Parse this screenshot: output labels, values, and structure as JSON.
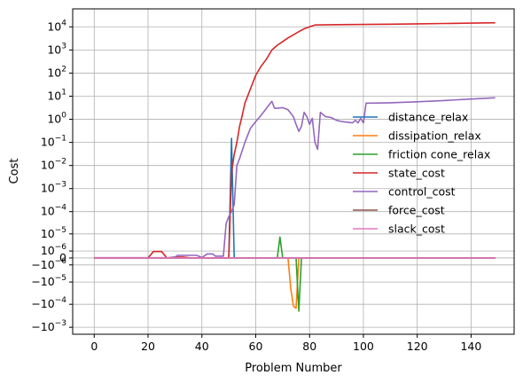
{
  "chart_data": {
    "type": "line",
    "xlabel": "Problem Number",
    "ylabel": "Cost",
    "xlim": [
      -8,
      156
    ],
    "x_ticks": [
      0,
      20,
      40,
      60,
      80,
      100,
      120,
      140
    ],
    "y_scale": "symlog",
    "y_linthresh": 1e-06,
    "ylim": [
      -0.002,
      60000
    ],
    "y_ticks": [
      {
        "label": "10^4",
        "value": 10000
      },
      {
        "label": "10^3",
        "value": 1000
      },
      {
        "label": "10^2",
        "value": 100
      },
      {
        "label": "10^1",
        "value": 10
      },
      {
        "label": "10^0",
        "value": 1
      },
      {
        "label": "10^-1",
        "value": 0.1
      },
      {
        "label": "10^-2",
        "value": 0.01
      },
      {
        "label": "10^-3",
        "value": 0.001
      },
      {
        "label": "10^-4",
        "value": 0.0001
      },
      {
        "label": "10^-5",
        "value": 1e-05
      },
      {
        "label": "10^-6",
        "value": 1e-06
      },
      {
        "label": "0",
        "value": 0
      },
      {
        "label": "-10^-6",
        "value": -1e-06
      },
      {
        "label": "-10^-5",
        "value": -1e-05
      },
      {
        "label": "-10^-4",
        "value": -0.0001
      },
      {
        "label": "-10^-3",
        "value": -0.001
      }
    ],
    "grid": true,
    "legend_position": "center-right",
    "series": [
      {
        "name": "distance_relax",
        "color": "#1f77b4",
        "points": [
          [
            0,
            0
          ],
          [
            50,
            0
          ],
          [
            51,
            0.15
          ],
          [
            52,
            0
          ],
          [
            149,
            0
          ]
        ]
      },
      {
        "name": "dissipation_relax",
        "color": "#ff7f0e",
        "points": [
          [
            0,
            0
          ],
          [
            72,
            0
          ],
          [
            73,
            -2e-05
          ],
          [
            74,
            -0.00012
          ],
          [
            75,
            -0.00015
          ],
          [
            76,
            0
          ],
          [
            149,
            0
          ]
        ]
      },
      {
        "name": "friction cone_relax",
        "color": "#2ca02c",
        "points": [
          [
            0,
            0
          ],
          [
            68,
            0
          ],
          [
            69,
            7e-06
          ],
          [
            70,
            0
          ],
          [
            75,
            0
          ],
          [
            76,
            -0.0002
          ],
          [
            77,
            0
          ],
          [
            149,
            0
          ]
        ]
      },
      {
        "name": "state_cost",
        "color": "#d62728",
        "points": [
          [
            0,
            0
          ],
          [
            20,
            0
          ],
          [
            22,
            9e-07
          ],
          [
            25,
            9e-07
          ],
          [
            27,
            0
          ],
          [
            30,
            1e-07
          ],
          [
            33,
            1e-07
          ],
          [
            36,
            0
          ],
          [
            50,
            0
          ],
          [
            51,
            0.005
          ],
          [
            52,
            0.03
          ],
          [
            53,
            0.1
          ],
          [
            54,
            0.5
          ],
          [
            55,
            1.5
          ],
          [
            56,
            5
          ],
          [
            58,
            20
          ],
          [
            60,
            80
          ],
          [
            62,
            200
          ],
          [
            64,
            400
          ],
          [
            66,
            1000
          ],
          [
            68,
            1600
          ],
          [
            70,
            2300
          ],
          [
            72,
            3300
          ],
          [
            74,
            4500
          ],
          [
            76,
            6200
          ],
          [
            78,
            8200
          ],
          [
            80,
            10000
          ],
          [
            82,
            12000
          ],
          [
            90,
            12500
          ],
          [
            100,
            12700
          ],
          [
            110,
            13000
          ],
          [
            120,
            13500
          ],
          [
            130,
            14000
          ],
          [
            140,
            14500
          ],
          [
            149,
            15000
          ]
        ]
      },
      {
        "name": "control_cost",
        "color": "#9467bd",
        "points": [
          [
            0,
            2e-08
          ],
          [
            20,
            2e-08
          ],
          [
            28,
            3e-08
          ],
          [
            30,
            1e-07
          ],
          [
            31,
            3e-07
          ],
          [
            38,
            3e-07
          ],
          [
            40,
            5e-08
          ],
          [
            42,
            5e-07
          ],
          [
            44,
            5e-07
          ],
          [
            45,
            2e-07
          ],
          [
            48,
            2e-07
          ],
          [
            49,
            3e-05
          ],
          [
            50,
            6e-05
          ],
          [
            51,
            0.0001
          ],
          [
            52,
            0.0002
          ],
          [
            53,
            0.01
          ],
          [
            54,
            0.02
          ],
          [
            56,
            0.1
          ],
          [
            58,
            0.4
          ],
          [
            60,
            0.8
          ],
          [
            62,
            1.5
          ],
          [
            64,
            3
          ],
          [
            66,
            6
          ],
          [
            67,
            3
          ],
          [
            68,
            3
          ],
          [
            70,
            3.2
          ],
          [
            72,
            2.6
          ],
          [
            74,
            1.3
          ],
          [
            75,
            0.6
          ],
          [
            76,
            0.3
          ],
          [
            77,
            0.5
          ],
          [
            78,
            2
          ],
          [
            79,
            1.3
          ],
          [
            80,
            0.6
          ],
          [
            81,
            1.1
          ],
          [
            82,
            0.1
          ],
          [
            83,
            0.05
          ],
          [
            84,
            2
          ],
          [
            86,
            1.3
          ],
          [
            88,
            1.2
          ],
          [
            90,
            0.9
          ],
          [
            92,
            0.8
          ],
          [
            96,
            0.7
          ],
          [
            97,
            0.9
          ],
          [
            98,
            0.7
          ],
          [
            99,
            1.1
          ],
          [
            100,
            0.7
          ],
          [
            101,
            5
          ],
          [
            103,
            5
          ],
          [
            110,
            5.2
          ],
          [
            120,
            5.7
          ],
          [
            130,
            6.5
          ],
          [
            140,
            7.5
          ],
          [
            149,
            8.5
          ]
        ]
      },
      {
        "name": "force_cost",
        "color": "#8c564b",
        "points": [
          [
            0,
            0
          ],
          [
            149,
            0
          ]
        ]
      },
      {
        "name": "slack_cost",
        "color": "#e377c2",
        "points": [
          [
            0,
            0
          ],
          [
            149,
            0
          ]
        ]
      }
    ]
  }
}
